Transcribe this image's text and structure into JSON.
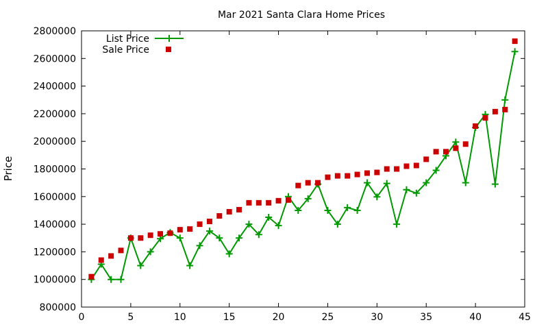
{
  "chart_data": {
    "type": "line",
    "title": "Mar 2021 Santa Clara Home Prices",
    "xlabel": "",
    "ylabel": "Price",
    "xlim": [
      0,
      45
    ],
    "ylim": [
      800000,
      2800000
    ],
    "xticks": [
      0,
      5,
      10,
      15,
      20,
      25,
      30,
      35,
      40,
      45
    ],
    "yticks": [
      800000,
      1000000,
      1200000,
      1400000,
      1600000,
      1800000,
      2000000,
      2200000,
      2400000,
      2600000,
      2800000
    ],
    "grid": false,
    "legend": "top-left",
    "x": [
      1,
      2,
      3,
      4,
      5,
      6,
      7,
      8,
      9,
      10,
      11,
      12,
      13,
      14,
      15,
      16,
      17,
      18,
      19,
      20,
      21,
      22,
      23,
      24,
      25,
      26,
      27,
      28,
      29,
      30,
      31,
      32,
      33,
      34,
      35,
      36,
      37,
      38,
      39,
      40,
      41,
      42,
      43,
      44
    ],
    "series": [
      {
        "name": "List Price",
        "style": "linespoints",
        "color": "#009900",
        "values": [
          1000000,
          1110000,
          1000000,
          1000000,
          1300000,
          1100000,
          1200000,
          1295000,
          1340000,
          1300000,
          1100000,
          1245000,
          1350000,
          1300000,
          1185000,
          1300000,
          1400000,
          1325000,
          1450000,
          1390000,
          1600000,
          1500000,
          1585000,
          1690000,
          1500000,
          1400000,
          1520000,
          1500000,
          1700000,
          1598000,
          1695000,
          1400000,
          1650000,
          1625000,
          1700000,
          1790000,
          1895000,
          1995000,
          1700000,
          2100000,
          2195000,
          1690000,
          2300000,
          2650000
        ]
      },
      {
        "name": "Sale Price",
        "style": "points",
        "color": "#cc0000",
        "values": [
          1020000,
          1140000,
          1170000,
          1210000,
          1300000,
          1300000,
          1320000,
          1330000,
          1335000,
          1360000,
          1365000,
          1400000,
          1420000,
          1460000,
          1490000,
          1505000,
          1555000,
          1555000,
          1555000,
          1570000,
          1575000,
          1680000,
          1700000,
          1700000,
          1740000,
          1750000,
          1750000,
          1760000,
          1770000,
          1775000,
          1800000,
          1800000,
          1820000,
          1825000,
          1870000,
          1925000,
          1925000,
          1950000,
          1980000,
          2110000,
          2170000,
          2215000,
          2230000,
          2725000
        ]
      }
    ]
  }
}
